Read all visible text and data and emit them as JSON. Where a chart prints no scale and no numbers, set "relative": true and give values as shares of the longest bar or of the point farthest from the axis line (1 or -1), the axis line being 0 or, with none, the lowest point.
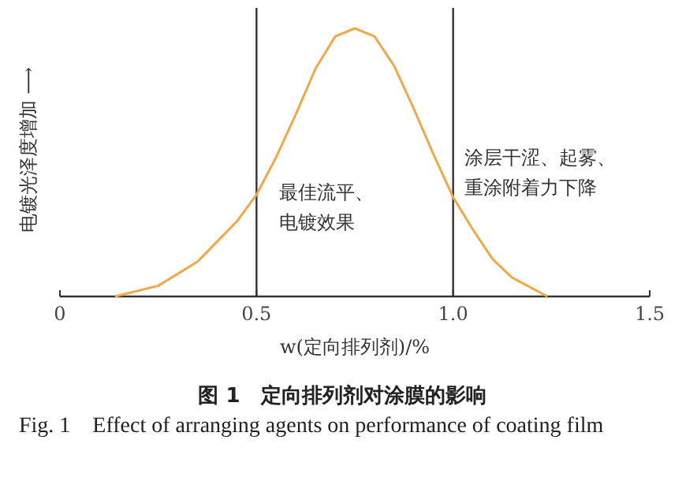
{
  "chart_data": {
    "type": "line",
    "relative": true,
    "title": "图 1　定向排列剂对涂膜的影响",
    "subtitle": "Fig. 1　Effect of arranging agents on performance of coating film",
    "xlabel": "w(定向排列剂)/%",
    "ylabel": "电镀光泽度增加 ⟶",
    "x": [
      0.14,
      0.25,
      0.35,
      0.45,
      0.5,
      0.55,
      0.6,
      0.65,
      0.7,
      0.75,
      0.8,
      0.85,
      0.9,
      0.95,
      1.0,
      1.05,
      1.1,
      1.15,
      1.24
    ],
    "series": [
      {
        "color": "#f0a848",
        "values": [
          0,
          0.04,
          0.13,
          0.28,
          0.38,
          0.52,
          0.68,
          0.85,
          0.97,
          1.0,
          0.97,
          0.86,
          0.7,
          0.53,
          0.37,
          0.25,
          0.14,
          0.07,
          0
        ]
      }
    ],
    "xlim": [
      0,
      1.5
    ],
    "xticks": [
      0,
      {
        "value": 0.5,
        "label": "0.5"
      },
      {
        "value": 1.0,
        "label": "1.0"
      },
      {
        "value": 1.5,
        "label": "1.5"
      }
    ],
    "ref_lines": [
      {
        "axis": "x",
        "value": 0.5,
        "color": "#333333"
      },
      {
        "axis": "x",
        "value": 1.0,
        "color": "#333333"
      }
    ],
    "annotations": [
      "最佳流平、",
      "电镀效果",
      "涂层干涩、起雾、",
      "重涂附着力下降"
    ]
  }
}
